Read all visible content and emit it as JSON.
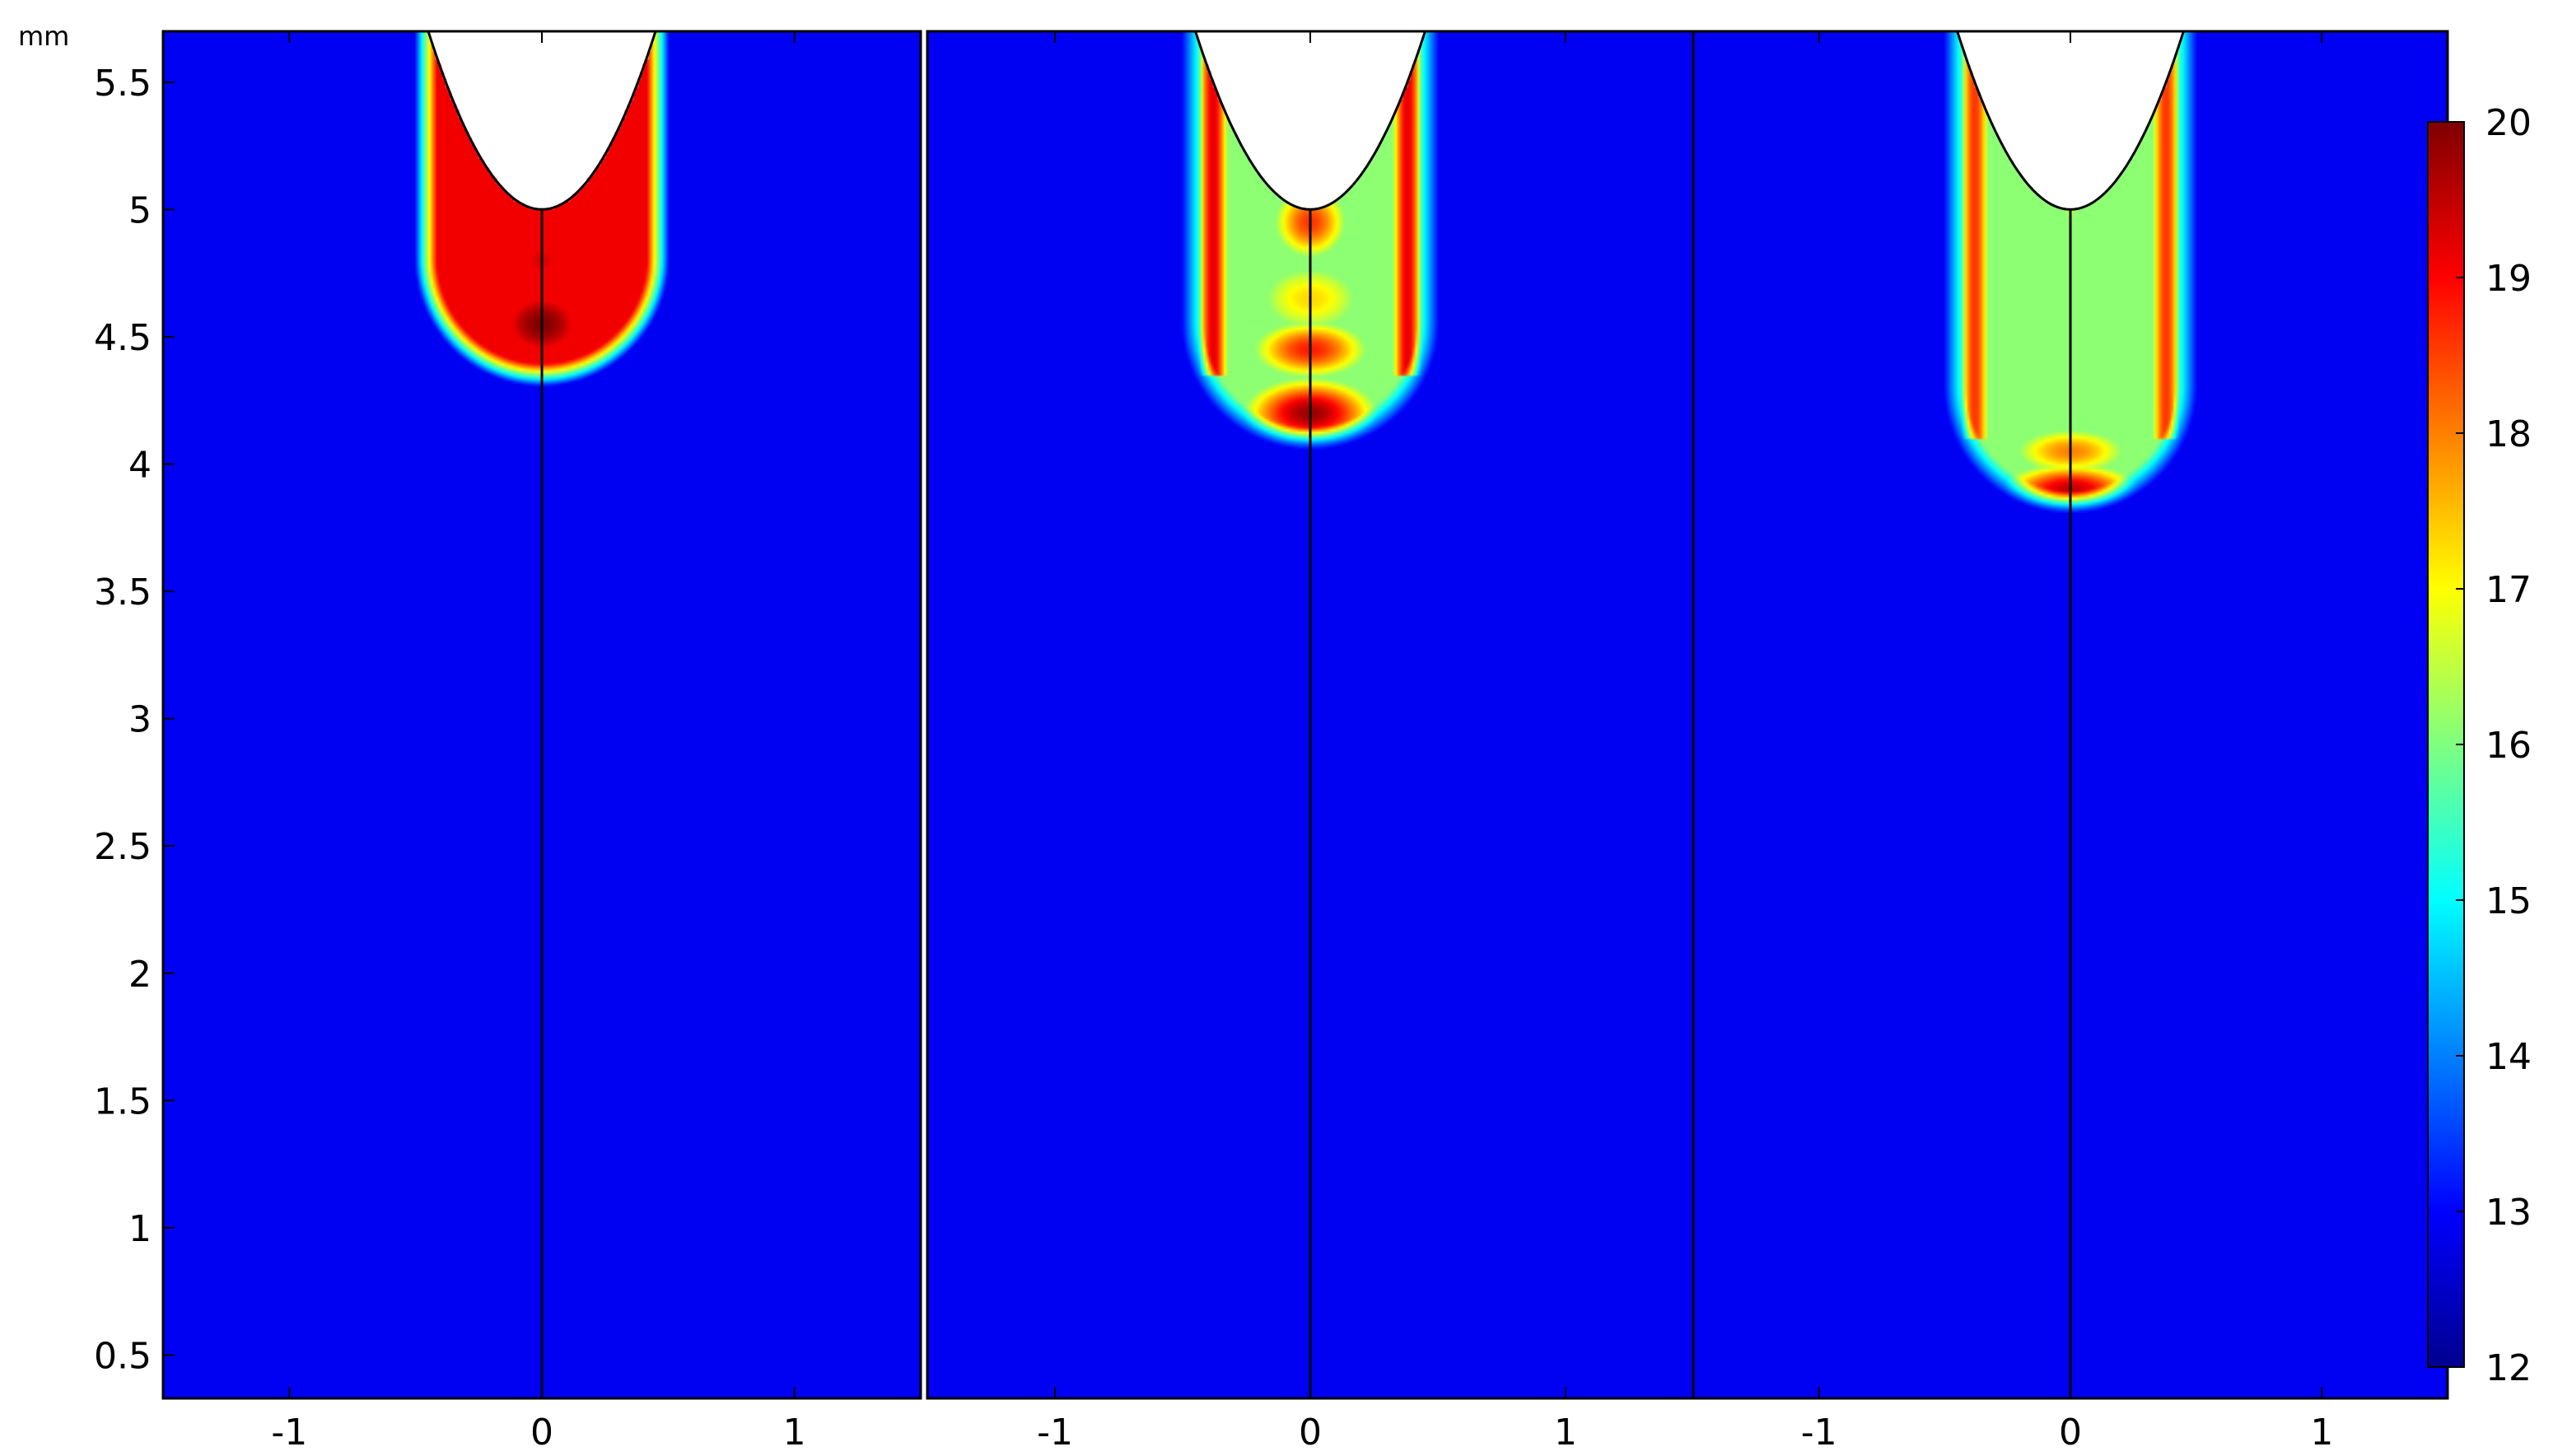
{
  "chart_data": {
    "type": "heatmap",
    "title": "",
    "y_unit_label": "mm",
    "panels": [
      {
        "name": "",
        "x_ticks": [
          "-1",
          "0",
          "1"
        ],
        "xlim": [
          -1.5,
          1.5
        ],
        "hot_depth_mm": 4.35,
        "hot_core": [
          [
            0.0,
            4.55,
            0.32,
            0.25,
            20.0
          ],
          [
            0.0,
            4.8,
            0.26,
            0.2,
            19.3
          ],
          [
            0.0,
            5.05,
            0.25,
            0.2,
            19.1
          ]
        ],
        "rim_peak": 19.0
      },
      {
        "name": "",
        "x_ticks": [
          "-1",
          "0",
          "1"
        ],
        "xlim": [
          -1.5,
          1.5
        ],
        "hot_depth_mm": 4.1,
        "hot_core": [
          [
            0.0,
            4.2,
            0.3,
            0.16,
            19.8
          ],
          [
            0.0,
            4.45,
            0.28,
            0.14,
            18.8
          ],
          [
            0.0,
            4.95,
            0.18,
            0.18,
            18.6
          ],
          [
            0.0,
            4.65,
            0.3,
            0.2,
            17.3
          ]
        ],
        "rim_peak": 19.2
      },
      {
        "name": "",
        "x_ticks": [
          "-1",
          "0",
          "1"
        ],
        "xlim": [
          -1.5,
          1.5
        ],
        "hot_depth_mm": 3.85,
        "hot_core": [
          [
            0.0,
            3.9,
            0.32,
            0.12,
            19.5
          ],
          [
            0.0,
            4.05,
            0.3,
            0.12,
            18.0
          ],
          [
            0.0,
            4.25,
            0.15,
            0.06,
            15.3
          ],
          [
            0.0,
            5.0,
            0.06,
            0.1,
            16.5
          ]
        ],
        "rim_peak": 18.6
      }
    ],
    "y_ticks": [
      "0.5",
      "1",
      "1.5",
      "2",
      "2.5",
      "3",
      "3.5",
      "4",
      "4.5",
      "5",
      "5.5"
    ],
    "ylim": [
      0.33,
      5.7
    ],
    "tip_apex_mm": 5.0,
    "tip_halfwidth_at_top_mm": 0.45,
    "colorbar": {
      "ticks": [
        "12",
        "13",
        "14",
        "15",
        "16",
        "17",
        "18",
        "19",
        "20"
      ],
      "range": [
        12,
        20
      ],
      "colormap": "jet"
    },
    "background_value": 12.9
  }
}
